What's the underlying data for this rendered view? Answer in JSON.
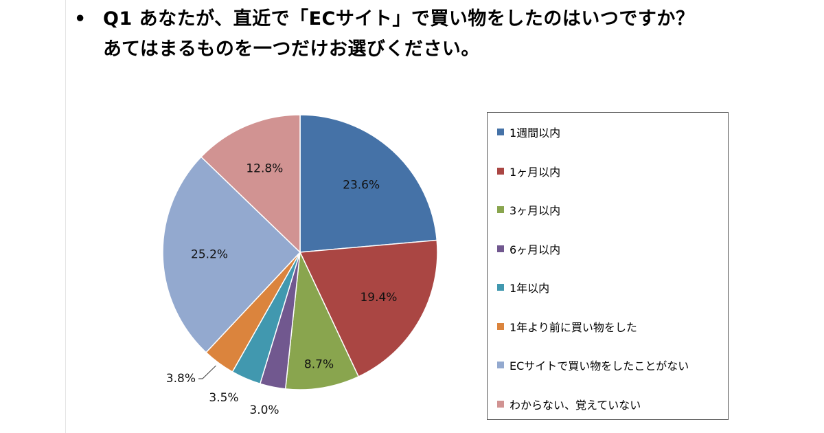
{
  "title": {
    "bullet": "•",
    "line1": "Q1 あなたが、直近で「ECサイト」で買い物をしたのはいつですか？",
    "line2": "あてはまるものを一つだけお選びください。"
  },
  "chart_data": {
    "type": "pie",
    "title": "Q1 あなたが、直近で「ECサイト」で買い物をしたのはいつですか？ あてはまるものを一つだけお選びください。",
    "categories": [
      "1週間以内",
      "1ヶ月以内",
      "3ヶ月以内",
      "6ヶ月以内",
      "1年以内",
      "1年より前に買い物をした",
      "ECサイトで買い物をしたことがない",
      "わからない、覚えていない"
    ],
    "values": [
      23.6,
      19.4,
      8.7,
      3.0,
      3.5,
      3.8,
      25.2,
      12.8
    ],
    "labels": [
      "23.6%",
      "19.4%",
      "8.7%",
      "3.0%",
      "3.5%",
      "3.8%",
      "25.2%",
      "12.8%"
    ],
    "colors": [
      "#4572A7",
      "#AA4643",
      "#89A54E",
      "#71588F",
      "#4198AF",
      "#DB843D",
      "#93A9CF",
      "#D19392"
    ],
    "legend_position": "right",
    "start": "12 o'clock, clockwise"
  }
}
